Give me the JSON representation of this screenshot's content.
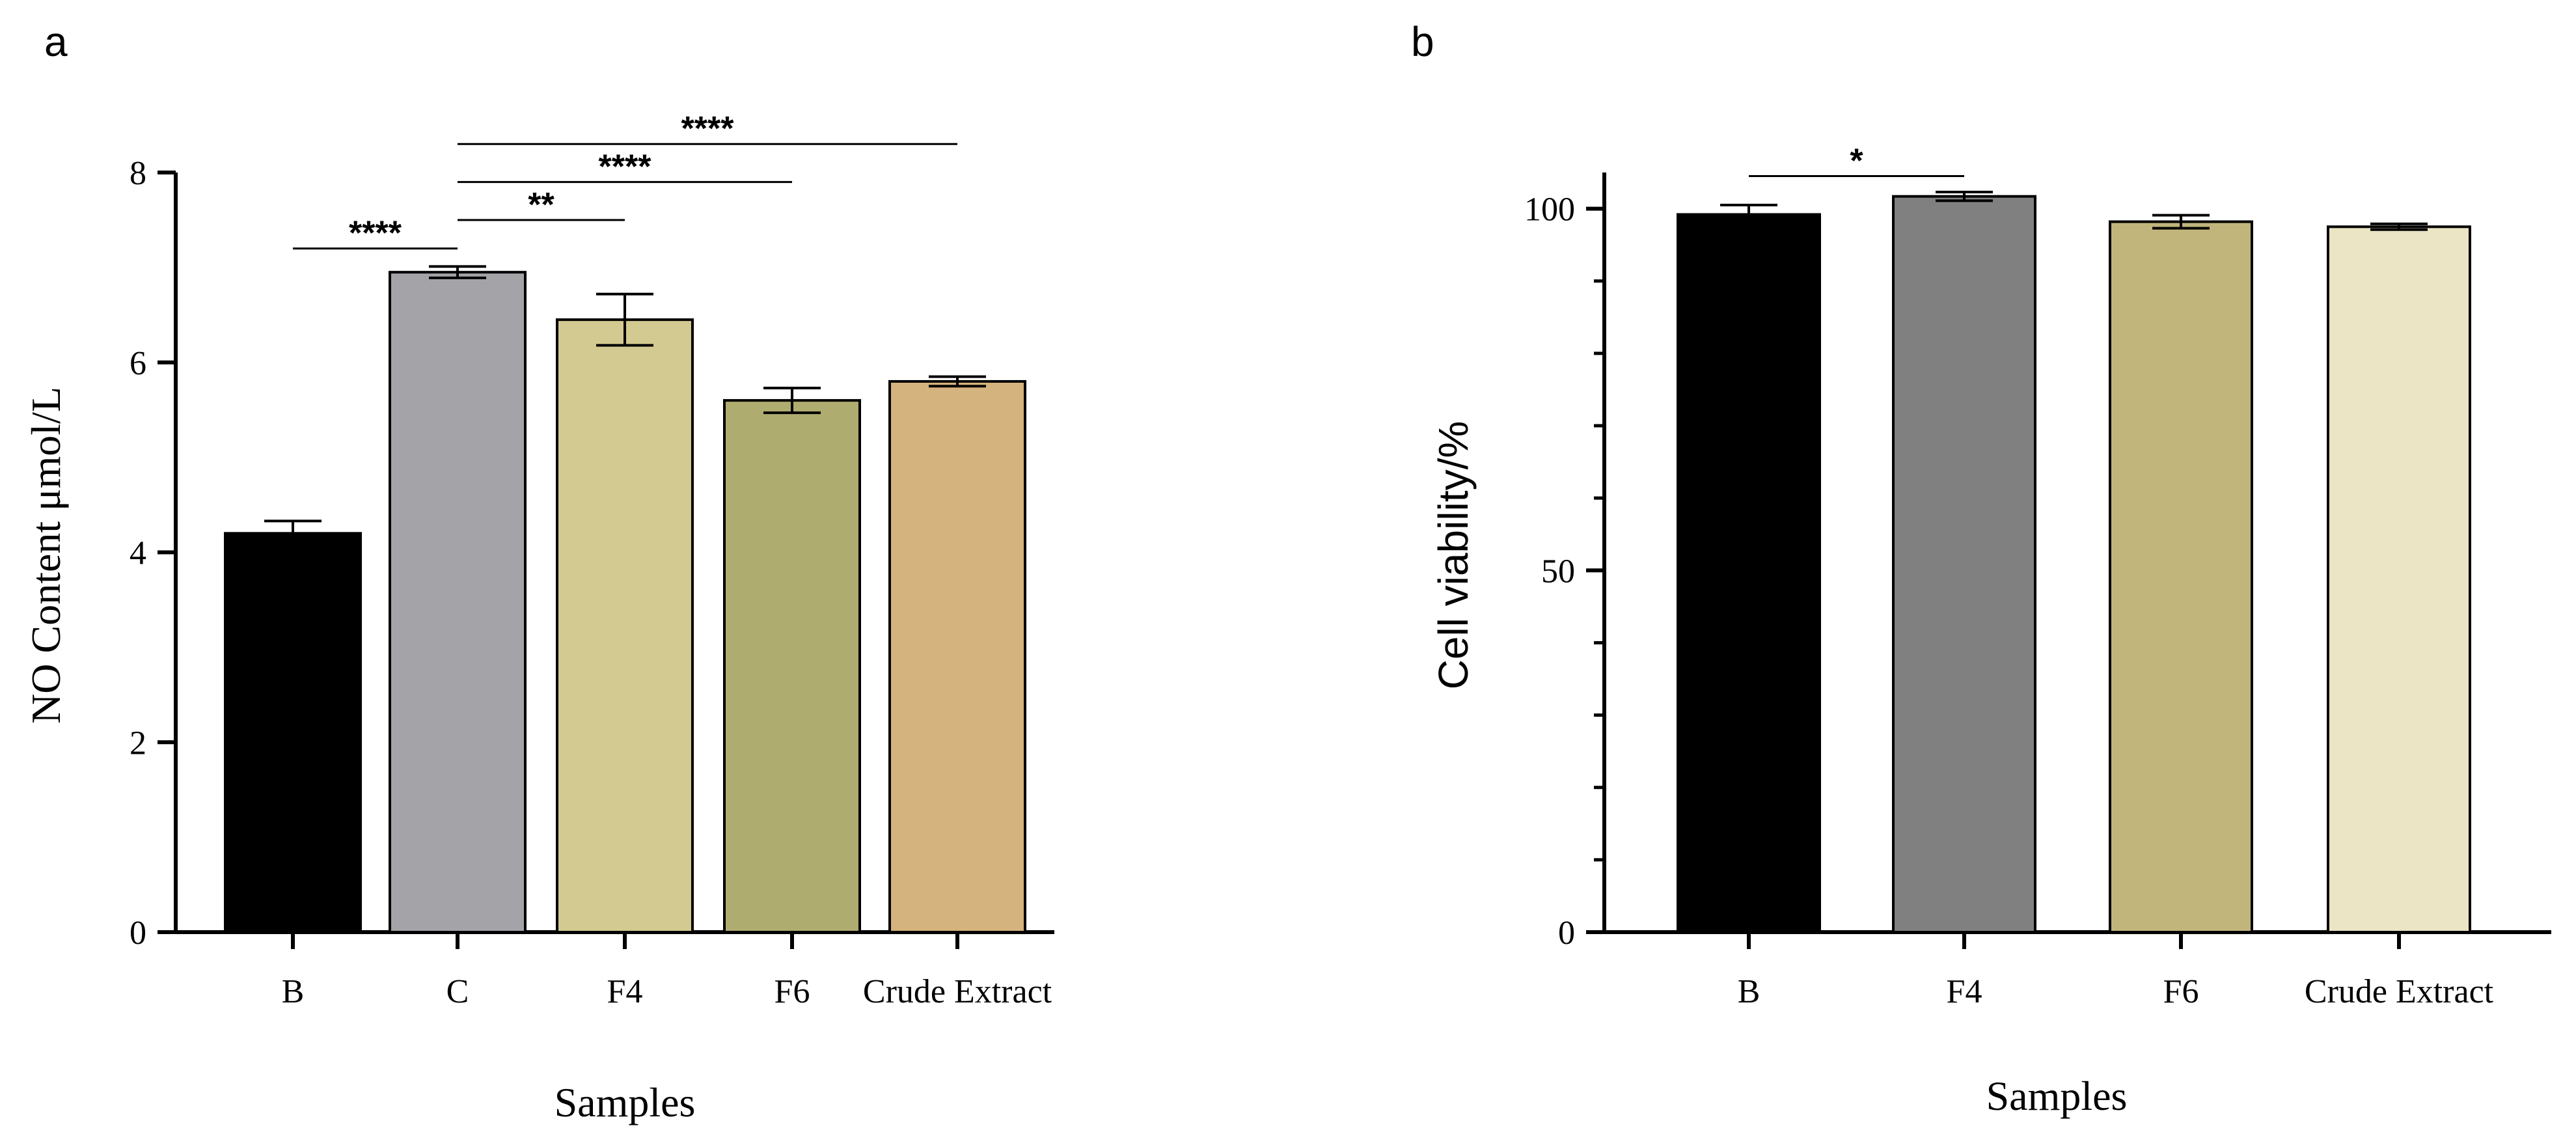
{
  "chart_data": [
    {
      "panel_label": "a",
      "type": "bar",
      "categories": [
        "B",
        "C",
        "F4",
        "F6",
        "Crude Extract"
      ],
      "values": [
        4.2,
        6.95,
        6.45,
        5.6,
        5.8
      ],
      "errors": [
        0.13,
        0.06,
        0.27,
        0.13,
        0.05
      ],
      "colors": [
        "#000000",
        "#a4a3a8",
        "#d3ca91",
        "#afac6f",
        "#d5b37e"
      ],
      "xlabel": "Samples",
      "ylabel": "NO Content μmol/L",
      "ylim": [
        0,
        8
      ],
      "yticks": [
        0,
        2,
        4,
        6,
        8
      ],
      "significance": [
        {
          "from": 0,
          "to": 1,
          "y": 7.2,
          "label": "****"
        },
        {
          "from": 1,
          "to": 2,
          "y": 7.5,
          "label": "**"
        },
        {
          "from": 1,
          "to": 3,
          "y": 7.9,
          "label": "****"
        },
        {
          "from": 1,
          "to": 4,
          "y": 8.3,
          "label": "****"
        }
      ]
    },
    {
      "panel_label": "b",
      "type": "bar",
      "categories": [
        "B",
        "F4",
        "F6",
        "Crude Extract"
      ],
      "values": [
        99.2,
        101.7,
        98.2,
        97.5
      ],
      "errors": [
        1.3,
        0.6,
        0.9,
        0.4
      ],
      "colors": [
        "#000000",
        "#808080",
        "#c1b57c",
        "#ebe4c5"
      ],
      "xlabel": "Samples",
      "ylabel": "Cell  viability/%",
      "ylim": [
        0,
        105
      ],
      "yticks": [
        0,
        50,
        100
      ],
      "significance": [
        {
          "from": 0,
          "to": 1,
          "y": 104.5,
          "label": "*"
        }
      ]
    }
  ]
}
